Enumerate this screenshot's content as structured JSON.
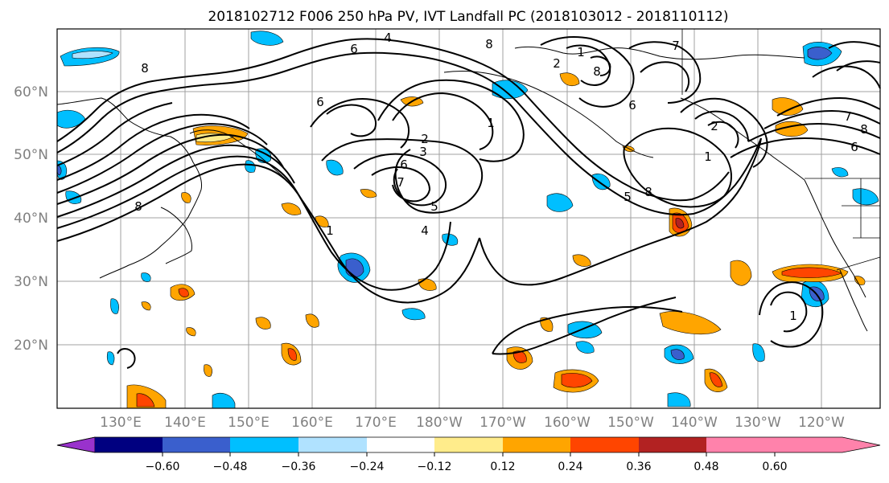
{
  "figure": {
    "title": "2018102712 F006 250 hPa PV, IVT Landfall PC (2018103012 - 2018110112)"
  },
  "map": {
    "lat_labels": [
      "60°N",
      "50°N",
      "40°N",
      "30°N",
      "20°N"
    ],
    "lon_labels": [
      "130°E",
      "140°E",
      "150°E",
      "160°E",
      "170°E",
      "180°W",
      "170°W",
      "160°W",
      "150°W",
      "140°W",
      "130°W",
      "120°W"
    ],
    "contour_labels": [
      "4",
      "6",
      "8",
      "1",
      "6",
      "7",
      "8",
      "1",
      "2",
      "3",
      "4",
      "5",
      "6",
      "8",
      "2",
      "8",
      "1",
      "7",
      "8",
      "5",
      "6",
      "7",
      "8",
      "1",
      "6",
      "2",
      "1"
    ]
  },
  "colorbar": {
    "tick_labels": [
      "−0.60",
      "−0.48",
      "−0.36",
      "−0.24",
      "−0.12",
      "0.12",
      "0.24",
      "0.36",
      "0.48",
      "0.60"
    ],
    "colors": [
      "#9932cc",
      "#000080",
      "#3a5fcd",
      "#00bfff",
      "#b0e2ff",
      "#ffffff",
      "#ffec8b",
      "#ffa500",
      "#ff4500",
      "#b22222",
      "#ff82ab"
    ]
  }
}
